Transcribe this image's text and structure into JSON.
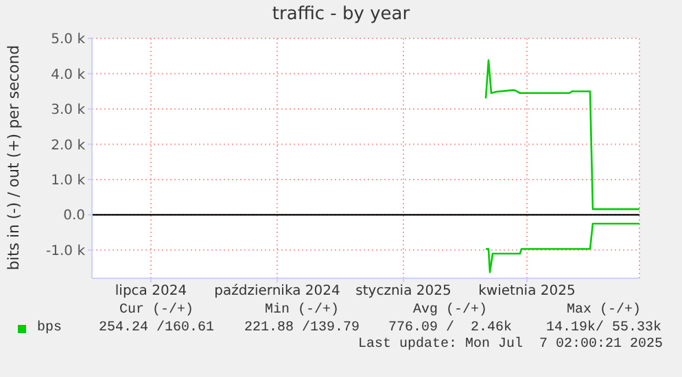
{
  "chart_data": {
    "type": "line",
    "title": "traffic - by year",
    "ylabel": "bits in (-) / out (+) per second",
    "xlim": [
      "2024-06-02",
      "2025-07-06"
    ],
    "xticks": [
      {
        "value": "2024-07-15",
        "label": "lipca 2024"
      },
      {
        "value": "2024-10-15",
        "label": "października 2024"
      },
      {
        "value": "2025-01-15",
        "label": "stycznia 2025"
      },
      {
        "value": "2025-04-15",
        "label": "kwietnia 2025"
      }
    ],
    "ylim": [
      -1800,
      5000
    ],
    "yticks": [
      {
        "value": -1000,
        "label": "-1.0 k"
      },
      {
        "value": 0,
        "label": "0.0"
      },
      {
        "value": 1000,
        "label": "1.0 k"
      },
      {
        "value": 2000,
        "label": "2.0 k"
      },
      {
        "value": 3000,
        "label": "3.0 k"
      },
      {
        "value": 4000,
        "label": "4.0 k"
      },
      {
        "value": 5000,
        "label": "5.0 k"
      }
    ],
    "series": [
      {
        "name": "bps",
        "color": "#00cc00",
        "x": [
          "2025-03-16",
          "2025-03-18",
          "2025-03-20",
          "2025-03-24",
          "2025-04-04",
          "2025-04-06",
          "2025-04-10",
          "2025-05-16",
          "2025-05-18",
          "2025-05-31",
          "2025-06-02",
          "2025-07-06"
        ],
        "values": [
          3300,
          4380,
          3450,
          3490,
          3530,
          3530,
          3450,
          3450,
          3500,
          3500,
          160,
          160
        ]
      },
      {
        "color": "#00cc00",
        "x": [
          "2025-03-16",
          "2025-03-18",
          "2025-03-19",
          "2025-03-21",
          "2025-04-10",
          "2025-04-11",
          "2025-05-31",
          "2025-06-02",
          "2025-07-06"
        ],
        "values": [
          -970,
          -970,
          -1630,
          -1100,
          -1100,
          -970,
          -970,
          -250,
          -250
        ]
      }
    ],
    "ref_lines": [
      {
        "axis": "y",
        "value": 0,
        "color": "#000000"
      }
    ],
    "grid": true,
    "legend": "bottom left",
    "marker": "none",
    "line_style": "solid",
    "annotations": [
      "Cur (-/+)",
      "Min (-/+)",
      "Avg (-/+)",
      "Max (-/+)",
      "254.24 /160.61",
      "221.88 /139.79",
      "776.09 /  2.46k",
      "14.19k/ 55.33k",
      "Last update: Mon Jul  7 02:00:21 2025"
    ]
  }
}
